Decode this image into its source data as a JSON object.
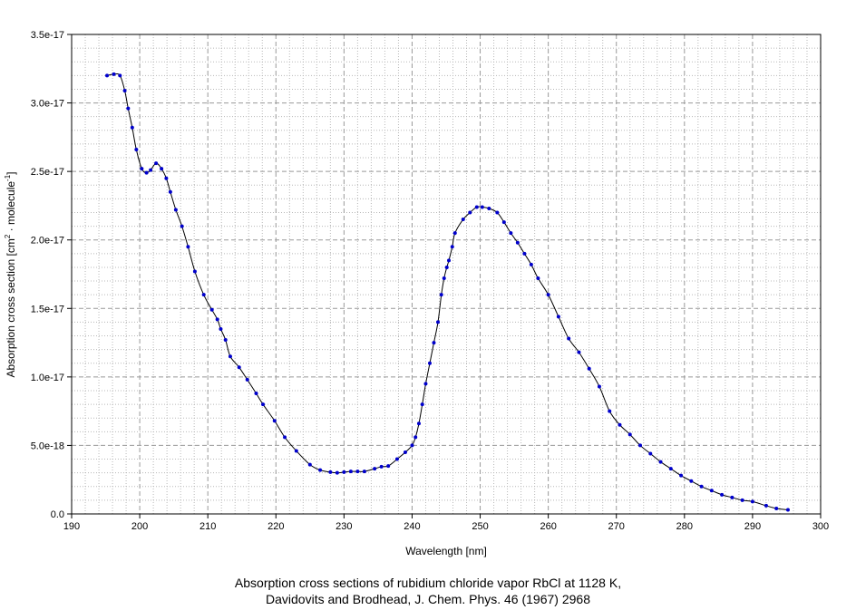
{
  "chart_data": {
    "type": "line",
    "xlabel": "Wavelength [nm]",
    "ylabel_parts": [
      "Absorption cross section [cm",
      "2",
      " · molecule",
      "-1",
      "]"
    ],
    "xlim": [
      190,
      300
    ],
    "ylim": [
      0,
      3.5e-17
    ],
    "xticks": [
      190,
      200,
      210,
      220,
      230,
      240,
      250,
      260,
      270,
      280,
      290,
      300
    ],
    "xtick_labels": [
      "190",
      "200",
      "210",
      "220",
      "230",
      "240",
      "250",
      "260",
      "270",
      "280",
      "290",
      "300"
    ],
    "yticks": [
      0,
      5e-18,
      1e-17,
      1.5e-17,
      2e-17,
      2.5e-17,
      3e-17,
      3.5e-17
    ],
    "ytick_labels": [
      "0.0",
      "5.0e-18",
      "1.0e-17",
      "1.5e-17",
      "2.0e-17",
      "2.5e-17",
      "3.0e-17",
      "3.5e-17"
    ],
    "grid": true,
    "line_color": "#000000",
    "marker_color": "#0000cc",
    "series": [
      {
        "x": [
          195.2,
          196.2,
          197.1,
          197.8,
          198.3,
          198.9,
          199.5,
          200.3,
          201.0,
          201.6,
          202.4,
          203.2,
          203.9,
          204.5,
          205.3,
          206.2,
          207.1,
          208.1,
          209.4,
          210.6,
          211.4,
          211.9,
          212.6,
          213.3,
          214.6,
          215.8,
          217.1,
          218.1,
          219.8,
          221.3,
          223.0,
          225.0,
          226.5,
          228.0,
          229.0,
          230.0,
          231.0,
          232.0,
          233.0,
          234.5,
          235.5,
          236.5,
          237.8,
          239.0,
          240.0,
          240.5,
          241.0,
          241.5,
          242.0,
          242.6,
          243.2,
          243.8,
          244.3,
          244.7,
          245.1,
          245.4,
          245.9,
          246.3,
          247.5,
          248.5,
          249.5,
          250.3,
          251.3,
          252.5,
          253.5,
          254.5,
          255.5,
          256.5,
          257.5,
          258.5,
          260.0,
          261.5,
          263.0,
          264.5,
          266.0,
          267.5,
          269.0,
          270.5,
          272.0,
          273.5,
          275.0,
          276.5,
          278.0,
          279.5,
          281.0,
          282.5,
          284.0,
          285.5,
          287.0,
          288.5,
          290.0,
          292.0,
          293.5,
          295.2
        ],
        "y": [
          3.2e-17,
          3.21e-17,
          3.2e-17,
          3.09e-17,
          2.96e-17,
          2.82e-17,
          2.66e-17,
          2.52e-17,
          2.49e-17,
          2.51e-17,
          2.56e-17,
          2.52e-17,
          2.45e-17,
          2.35e-17,
          2.22e-17,
          2.1e-17,
          1.95e-17,
          1.77e-17,
          1.6e-17,
          1.49e-17,
          1.42e-17,
          1.35e-17,
          1.27e-17,
          1.15e-17,
          1.07e-17,
          9.8e-18,
          8.8e-18,
          8e-18,
          6.8e-18,
          5.6e-18,
          4.6e-18,
          3.6e-18,
          3.2e-18,
          3.05e-18,
          3e-18,
          3.05e-18,
          3.1e-18,
          3.1e-18,
          3.1e-18,
          3.3e-18,
          3.45e-18,
          3.5e-18,
          4e-18,
          4.5e-18,
          5e-18,
          5.6e-18,
          6.6e-18,
          8e-18,
          9.5e-18,
          1.1e-17,
          1.25e-17,
          1.4e-17,
          1.6e-17,
          1.72e-17,
          1.8e-17,
          1.85e-17,
          1.95e-17,
          2.05e-17,
          2.15e-17,
          2.2e-17,
          2.24e-17,
          2.24e-17,
          2.23e-17,
          2.2e-17,
          2.13e-17,
          2.05e-17,
          1.98e-17,
          1.9e-17,
          1.82e-17,
          1.72e-17,
          1.6e-17,
          1.44e-17,
          1.28e-17,
          1.18e-17,
          1.06e-17,
          9.3e-18,
          7.5e-18,
          6.5e-18,
          5.8e-18,
          5e-18,
          4.4e-18,
          3.8e-18,
          3.3e-18,
          2.8e-18,
          2.4e-18,
          2e-18,
          1.7e-18,
          1.4e-18,
          1.2e-18,
          1e-18,
          9e-19,
          6e-19,
          4e-19,
          3e-19
        ]
      }
    ]
  },
  "caption": {
    "line1": "Absorption cross sections of rubidium chloride vapor RbCl at 1128 K,",
    "line2": "Davidovits and Brodhead, J. Chem. Phys. 46 (1967) 2968"
  }
}
